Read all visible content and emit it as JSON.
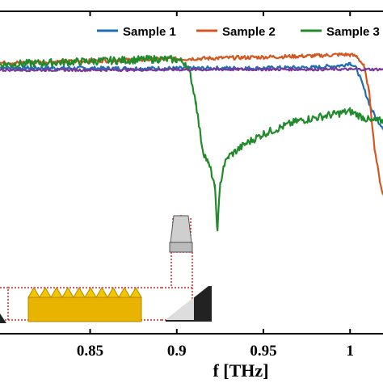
{
  "chart_data": {
    "type": "line",
    "title": "",
    "xlabel": "f [THz]",
    "ylabel": "",
    "xlim": [
      0.798,
      1.019
    ],
    "ylim": [
      0,
      1
    ],
    "x_ticks": [
      {
        "value": 0.85,
        "label": "0.85"
      },
      {
        "value": 0.9,
        "label": "0.9"
      },
      {
        "value": 0.95,
        "label": "0.95"
      },
      {
        "value": 1.0,
        "label": "1"
      }
    ],
    "grid": false,
    "legend_position": "top-right",
    "legend": [
      "Sample 1",
      "Sample 2",
      "Sample 3"
    ],
    "series": [
      {
        "name": "Sample 1",
        "color": "#1f6eb4",
        "x": [
          0.798,
          0.85,
          0.9,
          0.95,
          0.98,
          0.995,
          1.0,
          1.004,
          1.008,
          1.012,
          1.016,
          1.019
        ],
        "y": [
          0.825,
          0.823,
          0.823,
          0.824,
          0.826,
          0.832,
          0.84,
          0.82,
          0.76,
          0.7,
          0.66,
          0.64
        ]
      },
      {
        "name": "Sample 2",
        "color": "#d4571f",
        "x": [
          0.798,
          0.85,
          0.9,
          0.95,
          0.98,
          0.995,
          1.0,
          1.004,
          1.008,
          1.011,
          1.014,
          1.017,
          1.019
        ],
        "y": [
          0.84,
          0.846,
          0.852,
          0.858,
          0.862,
          0.866,
          0.865,
          0.86,
          0.83,
          0.75,
          0.58,
          0.48,
          0.43
        ]
      },
      {
        "name": "Sample 3",
        "color": "#218a2a",
        "x": [
          0.798,
          0.85,
          0.89,
          0.9,
          0.905,
          0.908,
          0.911,
          0.913,
          0.915,
          0.918,
          0.92,
          0.922,
          0.9235,
          0.925,
          0.927,
          0.93,
          0.94,
          0.95,
          0.96,
          0.97,
          0.98,
          0.99,
          1.0,
          1.004,
          1.008,
          1.012,
          1.016,
          1.019
        ],
        "y": [
          0.835,
          0.845,
          0.852,
          0.85,
          0.84,
          0.8,
          0.72,
          0.64,
          0.57,
          0.53,
          0.5,
          0.45,
          0.32,
          0.46,
          0.52,
          0.55,
          0.59,
          0.62,
          0.64,
          0.66,
          0.67,
          0.68,
          0.69,
          0.68,
          0.67,
          0.66,
          0.66,
          0.66
        ]
      },
      {
        "name": "",
        "color": "#7a3a9a",
        "x": [
          0.798,
          0.85,
          0.9,
          0.95,
          1.0,
          1.019
        ],
        "y": [
          0.818,
          0.818,
          0.819,
          0.82,
          0.82,
          0.82
        ]
      }
    ]
  }
}
